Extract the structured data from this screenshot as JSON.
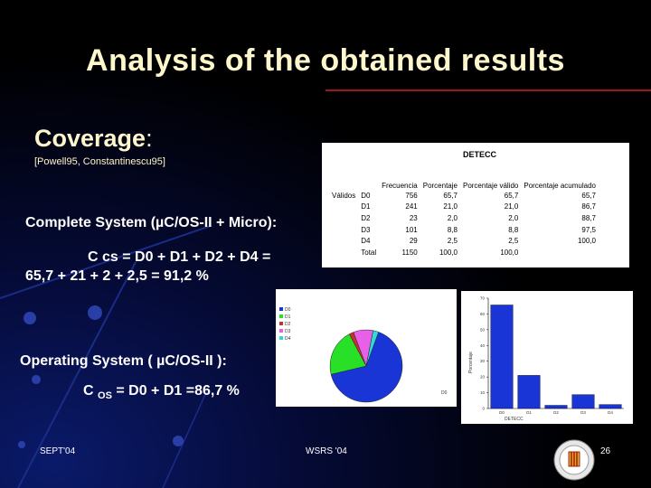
{
  "title": "Analysis of the obtained results",
  "coverage": {
    "heading": "Coverage",
    "colon": ":",
    "citation": "[Powell95, Constantinescu95]"
  },
  "complete_system": {
    "label": "Complete System (µC/OS-II + Micro):",
    "formula_line1": "C cs = D0 + D1 + D2 + D4 =",
    "formula_line2": "65,7 + 21 + 2 + 2,5 = 91,2 %"
  },
  "operating_system": {
    "label": "Operating System ( µC/OS-II ):",
    "formula_c": "C",
    "formula_sub": "OS",
    "formula_rest": " = D0 + D1 =86,7 %"
  },
  "footer": {
    "left": "SEPT'04",
    "center": "WSRS '04",
    "page": "26"
  },
  "table": {
    "title": "DETECC",
    "group_label": "Válidos",
    "headers": [
      "Frecuencia",
      "Porcentaje",
      "Porcentaje válido",
      "Porcentaje acumulado"
    ],
    "rows": [
      {
        "label": "D0",
        "freq": "756",
        "pct": "65,7",
        "valid": "65,7",
        "cum": "65,7"
      },
      {
        "label": "D1",
        "freq": "241",
        "pct": "21,0",
        "valid": "21,0",
        "cum": "86,7"
      },
      {
        "label": "D2",
        "freq": "23",
        "pct": "2,0",
        "valid": "2,0",
        "cum": "88,7"
      },
      {
        "label": "D3",
        "freq": "101",
        "pct": "8,8",
        "valid": "8,8",
        "cum": "97,5"
      },
      {
        "label": "D4",
        "freq": "29",
        "pct": "2,5",
        "valid": "2,5",
        "cum": "100,0"
      },
      {
        "label": "Total",
        "freq": "1150",
        "pct": "100,0",
        "valid": "100,0",
        "cum": ""
      }
    ]
  },
  "chart_data": [
    {
      "type": "pie",
      "legend": [
        "D0",
        "D1",
        "D2",
        "D3",
        "D4"
      ],
      "labels": [
        "D0",
        "D1",
        "D2",
        "D3",
        "D4"
      ],
      "values": [
        65.7,
        21.0,
        2.0,
        8.8,
        2.5
      ],
      "colors": [
        "#1a35d6",
        "#28e028",
        "#c83030",
        "#e860e8",
        "#30d8d8"
      ],
      "slice_label": "D0"
    },
    {
      "type": "bar",
      "categories": [
        "D0",
        "D1",
        "D2",
        "D3",
        "D4"
      ],
      "values": [
        65.7,
        21.0,
        2.0,
        8.8,
        2.5
      ],
      "ylabel": "Porcentaje",
      "xlabel": "DETECC",
      "ylim": [
        0,
        70
      ],
      "yticks": [
        "0",
        "10",
        "20",
        "30",
        "40",
        "50",
        "60",
        "70"
      ],
      "bar_color": "#1a35d6"
    }
  ]
}
